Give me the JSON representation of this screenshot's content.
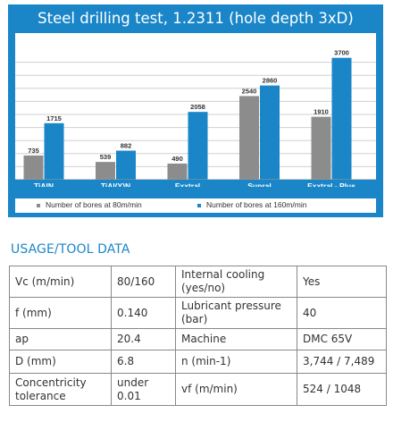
{
  "chart_data": {
    "type": "bar",
    "title": "Steel drilling test, 1.2311 (hole depth 3xD)",
    "categories": [
      "TiAlN",
      "TiAl(Y)N",
      "Exxtral",
      "Supral",
      "Exxtral - Plus"
    ],
    "series": [
      {
        "name": "Number of bores at 80m/min",
        "values": [
          735,
          539,
          490,
          2540,
          1910
        ],
        "color": "#8c8c8c"
      },
      {
        "name": "Number of bores at 160m/min",
        "values": [
          1715,
          882,
          2058,
          2860,
          3700
        ],
        "color": "#1a86c8"
      }
    ],
    "ylim": [
      0,
      3800
    ],
    "grid": true,
    "legend": "bottom",
    "data_labels": true
  },
  "section_heading": "USAGE/TOOL DATA",
  "table": [
    [
      "Vc (m/min)",
      "80/160",
      "Internal cooling (yes/no)",
      "Yes"
    ],
    [
      "f (mm)",
      "0.140",
      "Lubricant pressure (bar)",
      "40"
    ],
    [
      "ap",
      "20.4",
      "Machine",
      "DMC 65V"
    ],
    [
      "D (mm)",
      "6.8",
      "n (min-1)",
      "3,744 / 7,489"
    ],
    [
      "Concentricity tolerance",
      "under 0.01",
      "vf (m/min)",
      "524 / 1048"
    ]
  ]
}
